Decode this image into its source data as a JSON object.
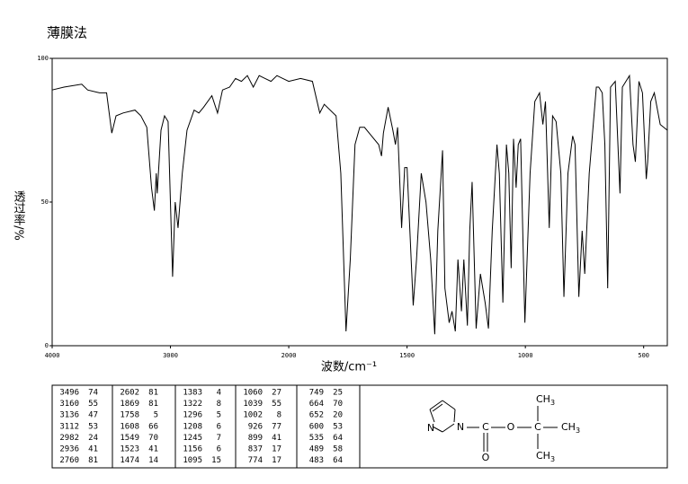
{
  "chart_data": {
    "type": "line",
    "title": "薄膜法",
    "xlabel": "波数/cm⁻¹",
    "ylabel": "透过率/%",
    "color": "#000000",
    "x": [
      4000,
      3900,
      3750,
      3700,
      3600,
      3540,
      3496,
      3460,
      3400,
      3300,
      3250,
      3200,
      3160,
      3136,
      3120,
      3112,
      3080,
      3050,
      3020,
      2982,
      2960,
      2936,
      2900,
      2860,
      2800,
      2760,
      2720,
      2650,
      2602,
      2560,
      2500,
      2450,
      2400,
      2350,
      2300,
      2250,
      2200,
      2150,
      2100,
      2050,
      2000,
      1950,
      1900,
      1869,
      1850,
      1800,
      1780,
      1758,
      1740,
      1720,
      1700,
      1680,
      1650,
      1620,
      1608,
      1600,
      1580,
      1560,
      1549,
      1540,
      1523,
      1510,
      1500,
      1474,
      1460,
      1440,
      1420,
      1400,
      1383,
      1370,
      1350,
      1340,
      1322,
      1310,
      1296,
      1285,
      1270,
      1260,
      1245,
      1235,
      1225,
      1208,
      1190,
      1170,
      1156,
      1140,
      1120,
      1110,
      1095,
      1080,
      1070,
      1060,
      1050,
      1039,
      1030,
      1020,
      1002,
      980,
      960,
      940,
      926,
      915,
      899,
      885,
      870,
      850,
      837,
      820,
      800,
      790,
      774,
      760,
      749,
      730,
      700,
      690,
      675,
      664,
      652,
      640,
      620,
      600,
      590,
      560,
      545,
      535,
      520,
      505,
      489,
      483,
      470,
      455,
      430,
      400
    ],
    "values": [
      89,
      90,
      91,
      89,
      88,
      88,
      74,
      80,
      81,
      82,
      80,
      76,
      55,
      47,
      60,
      53,
      75,
      80,
      78,
      24,
      50,
      41,
      60,
      75,
      82,
      81,
      83,
      87,
      81,
      89,
      90,
      93,
      92,
      94,
      90,
      94,
      93,
      92,
      94,
      93,
      92,
      93,
      92,
      81,
      84,
      80,
      60,
      5,
      30,
      70,
      76,
      76,
      73,
      70,
      66,
      74,
      83,
      75,
      70,
      76,
      41,
      62,
      62,
      14,
      30,
      60,
      50,
      30,
      4,
      40,
      68,
      20,
      8,
      12,
      5,
      30,
      12,
      30,
      7,
      40,
      57,
      6,
      25,
      15,
      6,
      40,
      70,
      60,
      15,
      70,
      60,
      27,
      72,
      55,
      70,
      72,
      8,
      60,
      85,
      88,
      77,
      85,
      41,
      80,
      78,
      60,
      17,
      60,
      73,
      70,
      17,
      40,
      25,
      60,
      90,
      90,
      88,
      70,
      20,
      90,
      92,
      53,
      90,
      94,
      70,
      64,
      92,
      88,
      58,
      64,
      85,
      88,
      77,
      75
    ],
    "xlim": [
      4000,
      400
    ],
    "xticks": [
      4000,
      3000,
      2000,
      1500,
      1000,
      500
    ],
    "ylim": [
      0,
      100
    ],
    "yticks": [
      0,
      50,
      100
    ]
  },
  "table": {
    "columns": [
      [
        [
          3496,
          74
        ],
        [
          3160,
          55
        ],
        [
          3136,
          47
        ],
        [
          3112,
          53
        ],
        [
          2982,
          24
        ],
        [
          2936,
          41
        ],
        [
          2760,
          81
        ]
      ],
      [
        [
          2602,
          81
        ],
        [
          1869,
          81
        ],
        [
          1758,
          5
        ],
        [
          1608,
          66
        ],
        [
          1549,
          70
        ],
        [
          1523,
          41
        ],
        [
          1474,
          14
        ]
      ],
      [
        [
          1383,
          4
        ],
        [
          1322,
          8
        ],
        [
          1296,
          5
        ],
        [
          1208,
          6
        ],
        [
          1245,
          7
        ],
        [
          1156,
          6
        ],
        [
          1095,
          15
        ]
      ],
      [
        [
          1060,
          27
        ],
        [
          1039,
          55
        ],
        [
          1002,
          8
        ],
        [
          926,
          77
        ],
        [
          899,
          41
        ],
        [
          837,
          17
        ],
        [
          774,
          17
        ]
      ],
      [
        [
          749,
          25
        ],
        [
          664,
          70
        ],
        [
          652,
          20
        ],
        [
          600,
          53
        ],
        [
          535,
          64
        ],
        [
          489,
          58
        ],
        [
          483,
          64
        ]
      ]
    ]
  },
  "structure": {
    "ring_n1": "N",
    "ring_n2": "N",
    "carbon": "C",
    "oxygen_ester": "O",
    "oxygen_carbonyl": "O",
    "carbon_quat": "C",
    "methyl_top": {
      "text": "CH",
      "sub": "3"
    },
    "methyl_right": {
      "text": "CH",
      "sub": "3"
    },
    "methyl_bottom": {
      "text": "CH",
      "sub": "3"
    }
  }
}
